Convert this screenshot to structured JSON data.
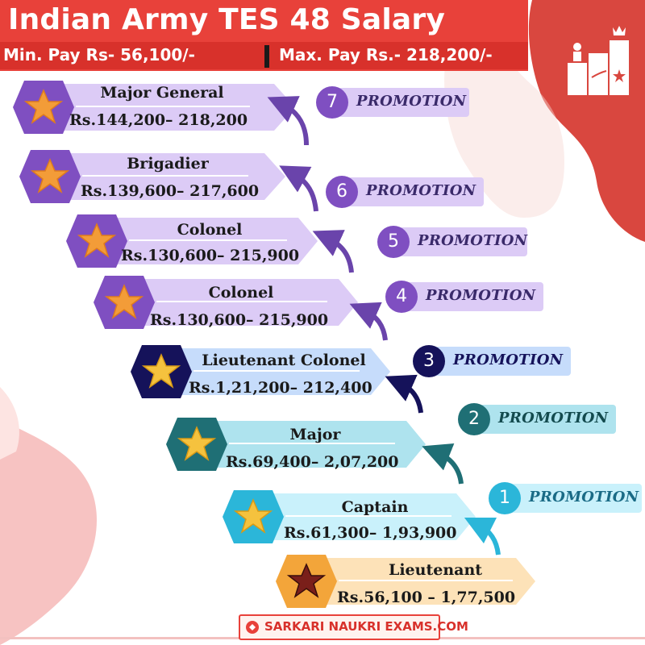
{
  "header": {
    "title": "Indian Army TES 48 Salary",
    "min_pay": "Min. Pay Rs- 56,100/-",
    "max_pay": "Max. Pay Rs.- 218,200/-"
  },
  "colors": {
    "header_red": "#e8413a",
    "purple": "#7f4fc1",
    "light_purple": "#dccbf6",
    "navy": "#15125a",
    "blue_light": "#c6dcfb",
    "teal": "#1f6f75",
    "teal_light": "#aee3ee",
    "cyan": "#2bb6d9",
    "cyan_light": "#c9f1fb",
    "orange": "#f3a53a",
    "orange_light": "#fde2b8"
  },
  "ranks": [
    {
      "name": "Major General",
      "pay": "Rs.144,200– 218,200",
      "icon": "star-icon"
    },
    {
      "name": "Brigadier",
      "pay": "Rs.139,600– 217,600",
      "icon": "star-icon"
    },
    {
      "name": "Colonel",
      "pay": "Rs.130,600– 215,900",
      "icon": "star-icon"
    },
    {
      "name": "Colonel",
      "pay": "Rs.130,600– 215,900",
      "icon": "star-icon"
    },
    {
      "name": "Lieutenant Colonel",
      "pay": "Rs.1,21,200– 212,400",
      "icon": "star-icon"
    },
    {
      "name": "Major",
      "pay": "Rs.69,400– 2,07,200",
      "icon": "star-icon"
    },
    {
      "name": "Captain",
      "pay": "Rs.61,300– 1,93,900",
      "icon": "star-icon"
    },
    {
      "name": "Lieutenant",
      "pay": "Rs.56,100 – 1,77,500",
      "icon": "star-icon"
    }
  ],
  "promotions": [
    {
      "number": "7",
      "label": "PROMOTION"
    },
    {
      "number": "6",
      "label": "PROMOTION"
    },
    {
      "number": "5",
      "label": "PROMOTION"
    },
    {
      "number": "4",
      "label": "PROMOTION"
    },
    {
      "number": "3",
      "label": "PROMOTION"
    },
    {
      "number": "2",
      "label": "PROMOTION"
    },
    {
      "number": "1",
      "label": "PROMOTION"
    }
  ],
  "footer": {
    "text": "SARKARI NAUKRI EXAMS.COM",
    "logo_icon": "logo-icon"
  },
  "decor": {
    "podium_icon": "podium-icon"
  }
}
